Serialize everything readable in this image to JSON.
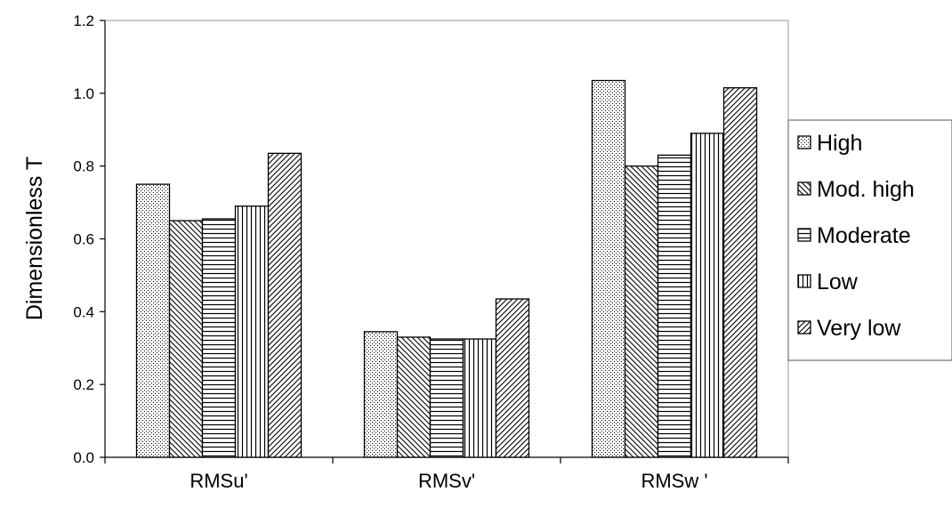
{
  "chart_data": {
    "type": "bar",
    "title": "",
    "xlabel": "",
    "ylabel": "Dimensionless T",
    "ylim": [
      0,
      1.2
    ],
    "yticks": [
      "0.0",
      "0.2",
      "0.4",
      "0.6",
      "0.8",
      "1.0",
      "1.2"
    ],
    "grid": false,
    "legend_position": "right",
    "categories": [
      "RMSu'",
      "RMSv'",
      "RMSw '"
    ],
    "series": [
      {
        "name": "High",
        "pattern": "dots",
        "values": [
          0.75,
          0.345,
          1.035
        ]
      },
      {
        "name": "Mod. high",
        "pattern": "diag-back",
        "values": [
          0.65,
          0.33,
          0.8
        ]
      },
      {
        "name": "Moderate",
        "pattern": "horizontal",
        "values": [
          0.655,
          0.325,
          0.83
        ]
      },
      {
        "name": "Low",
        "pattern": "vertical",
        "values": [
          0.69,
          0.325,
          0.89
        ]
      },
      {
        "name": "Very low",
        "pattern": "diag-fwd",
        "values": [
          0.835,
          0.435,
          1.015
        ]
      }
    ],
    "colors": {
      "bar_stroke": "#000000",
      "fill_bg": "#ffffff",
      "pattern_ink": "#000000"
    }
  }
}
